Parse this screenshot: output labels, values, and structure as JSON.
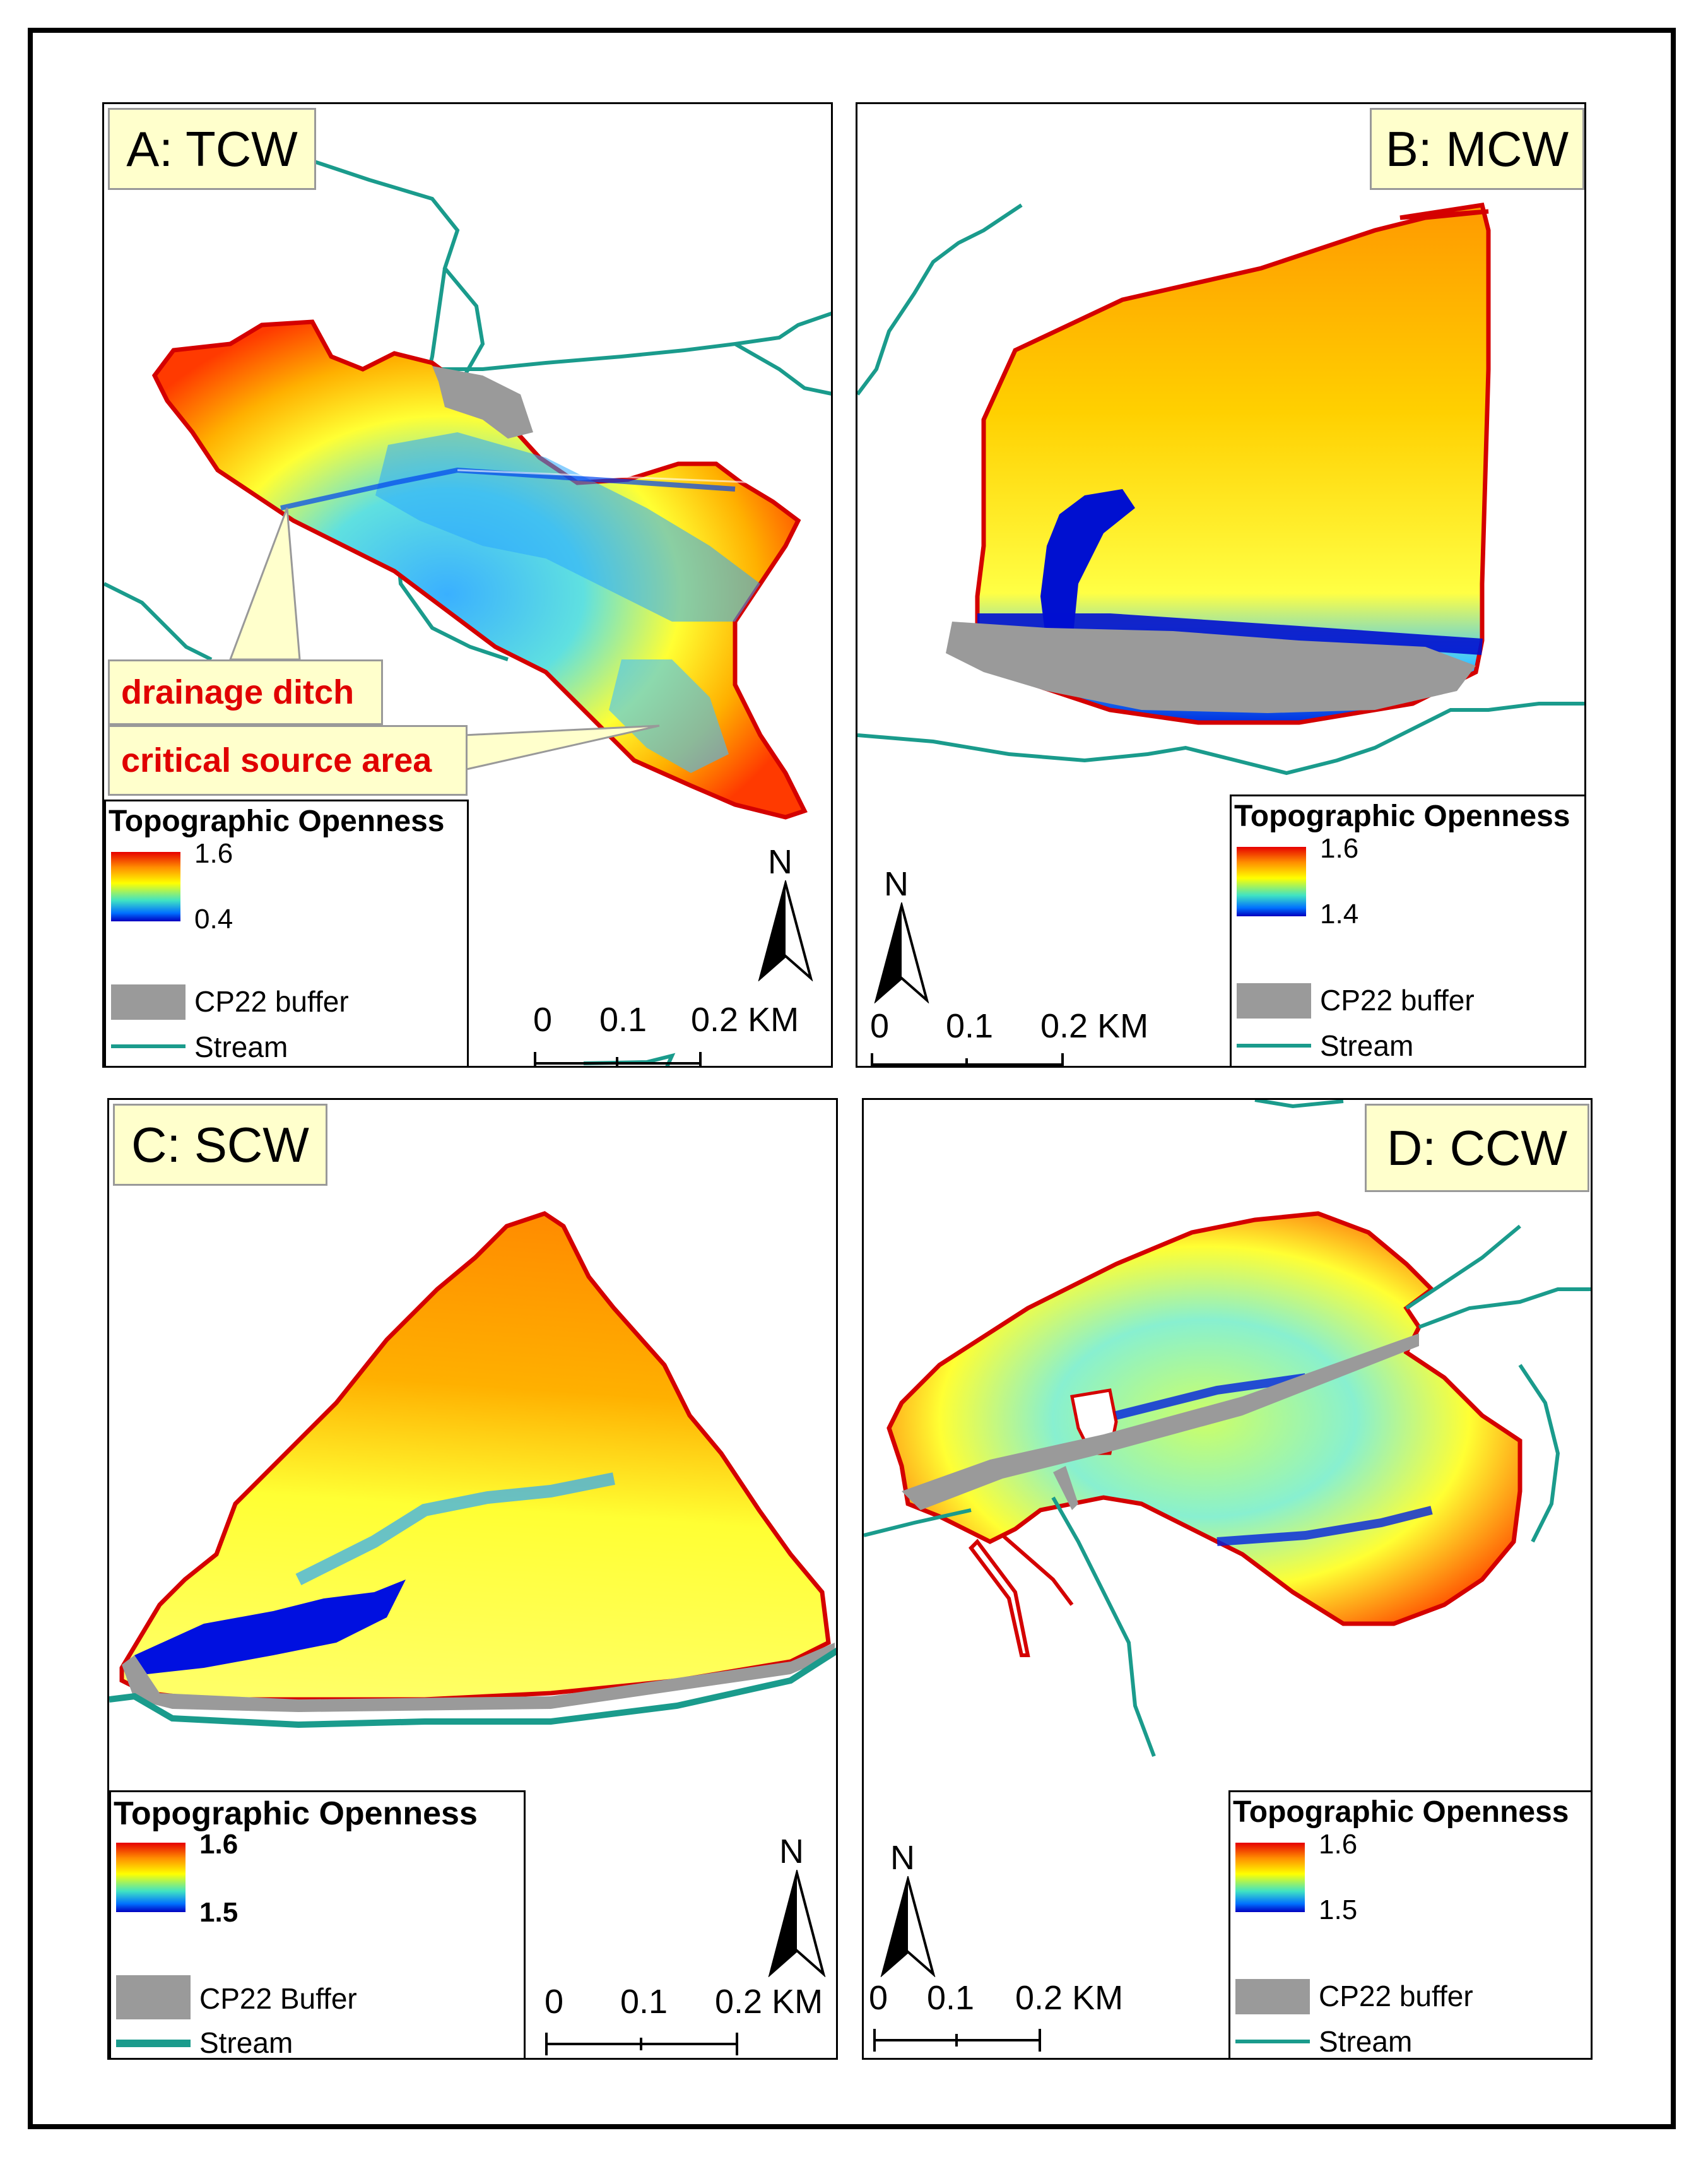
{
  "panels": {
    "a": {
      "title": "A: TCW",
      "legend_title": "Topographic Openness",
      "max": "1.6",
      "min": "0.4",
      "buffer": "CP22 buffer",
      "stream": "Stream",
      "callouts": {
        "ditch": "drainage ditch",
        "csa": "critical source area"
      }
    },
    "b": {
      "title": "B: MCW",
      "legend_title": "Topographic Openness",
      "max": "1.6",
      "min": "1.4",
      "buffer": "CP22 buffer",
      "stream": "Stream"
    },
    "c": {
      "title": "C: SCW",
      "legend_title": "Topographic Openness",
      "max": "1.6",
      "min": "1.5",
      "buffer": "CP22 Buffer",
      "stream": "Stream"
    },
    "d": {
      "title": "D: CCW",
      "legend_title": "Topographic Openness",
      "max": "1.6",
      "min": "1.5",
      "buffer": "CP22 buffer",
      "stream": "Stream"
    }
  },
  "scale_bar": {
    "t0": "0",
    "t1": "0.1",
    "t2": "0.2 KM"
  },
  "north_label": "N",
  "colors": {
    "stream": "#1a9b8c",
    "buffer": "#9a9a9a",
    "boundary": "#d40000",
    "label_bg": "#ffffcc",
    "callout_text": "#e00000"
  },
  "ramp": [
    "#e60000",
    "#ff8c00",
    "#ffff00",
    "#3fe3c4",
    "#0070ff",
    "#0000c0"
  ]
}
